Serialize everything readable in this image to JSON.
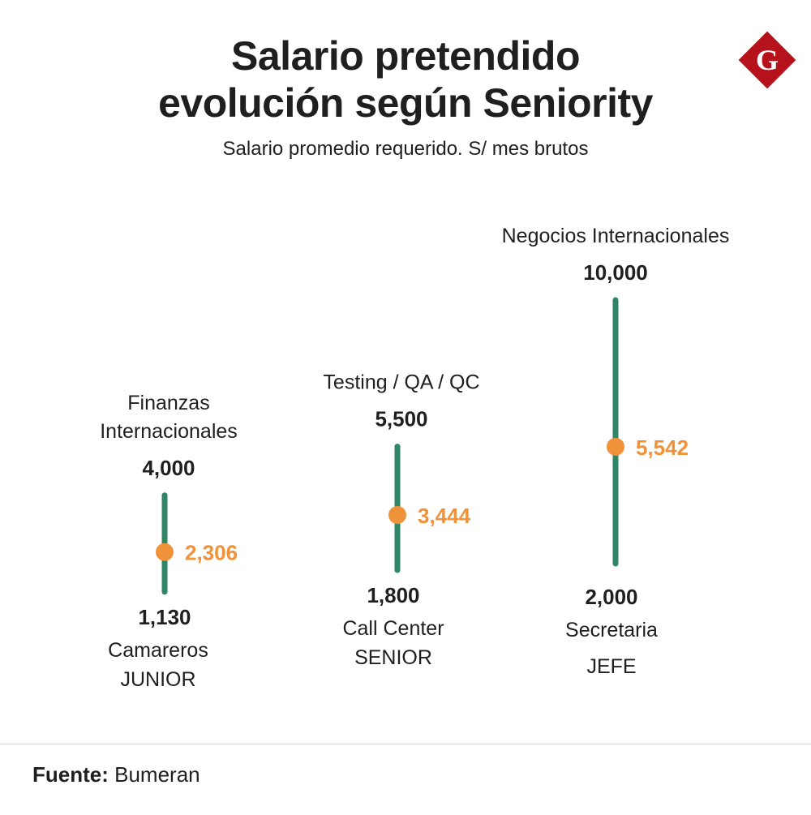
{
  "brand": {
    "logo_letter": "G",
    "logo_color": "#b5121b"
  },
  "header": {
    "title_line1": "Salario pretendido",
    "title_line2": "evolución según Seniority",
    "subtitle": "Salario promedio requerido. S/ mes brutos"
  },
  "colors": {
    "range_bar": "#2f8566",
    "average_dot": "#f0923a",
    "text": "#1f1f1f"
  },
  "chart_data": {
    "type": "range",
    "title": "Salario pretendido evolución según Seniority",
    "subtitle": "Salario promedio requerido. S/ mes brutos",
    "ylim": [
      0,
      10000
    ],
    "categories": [
      {
        "level": "JUNIOR",
        "max": 4000,
        "max_label": "4,000",
        "max_job": [
          "Finanzas",
          "Internacionales"
        ],
        "min": 1130,
        "min_label": "1,130",
        "min_job": [
          "Camareros"
        ],
        "avg": 2306,
        "avg_label": "2,306"
      },
      {
        "level": "SENIOR",
        "max": 5500,
        "max_label": "5,500",
        "max_job": [
          "Testing / QA / QC"
        ],
        "min": 1800,
        "min_label": "1,800",
        "min_job": [
          "Call Center"
        ],
        "avg": 3444,
        "avg_label": "3,444"
      },
      {
        "level": "JEFE",
        "max": 10000,
        "max_label": "10,000",
        "max_job": [
          "Negocios Internacionales"
        ],
        "min": 2000,
        "min_label": "2,000",
        "min_job": [
          "Secretaria"
        ],
        "avg": 5542,
        "avg_label": "5,542"
      }
    ]
  },
  "footer": {
    "source_label": "Fuente:",
    "source_value": "Bumeran"
  }
}
